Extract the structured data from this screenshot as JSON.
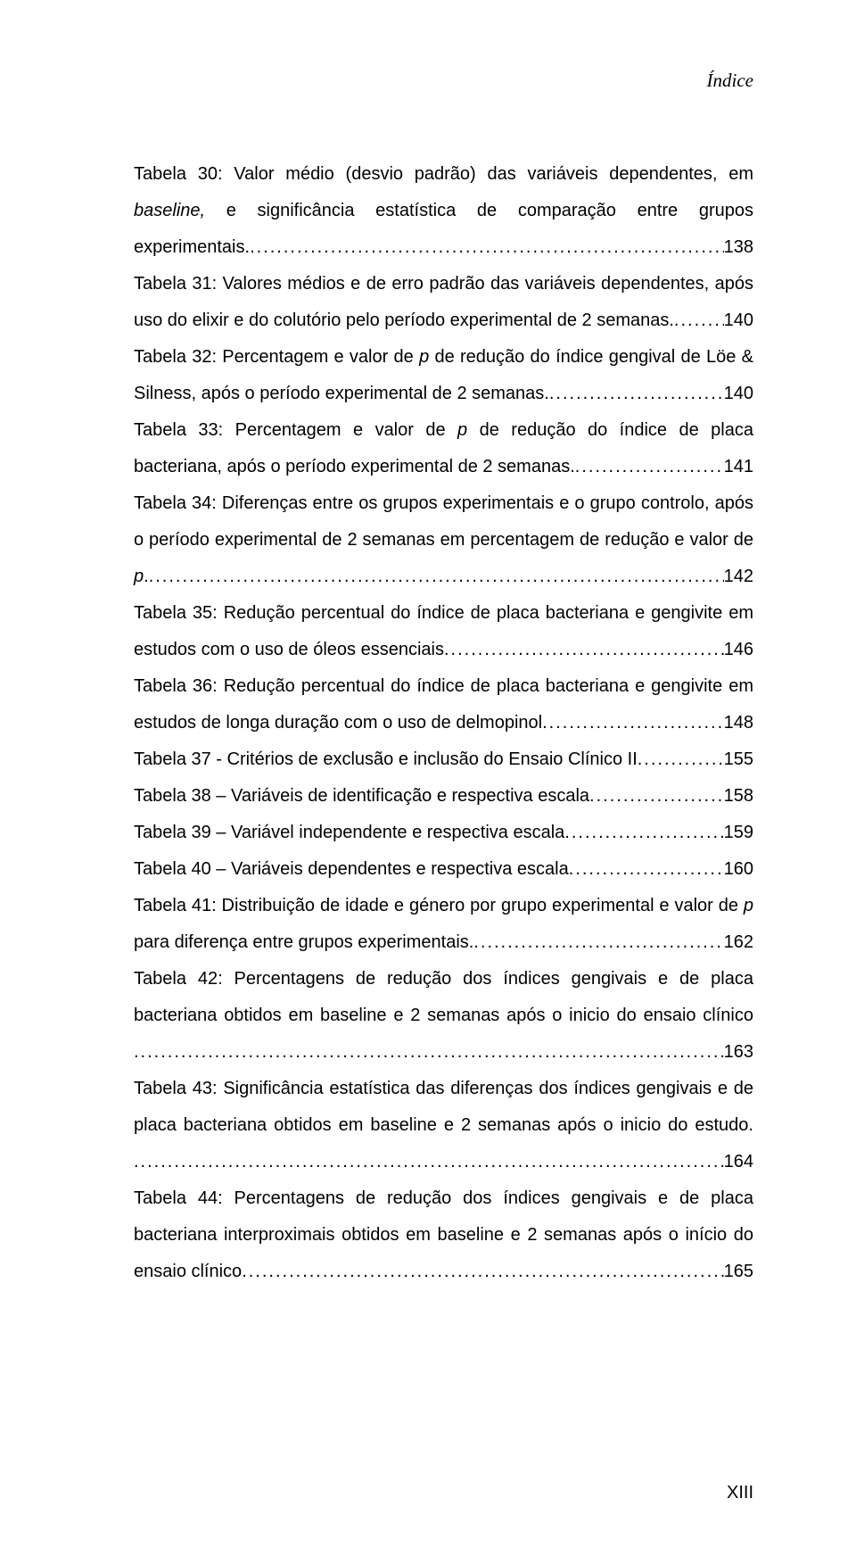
{
  "header_label": "Índice",
  "page_number": "XIII",
  "entries": [
    {
      "lines": [
        "Tabela 30: Valor médio (desvio padrão) das variáveis dependentes, em",
        "<span class=\"italic\">baseline,</span> e significância estatística de comparação entre grupos"
      ],
      "last": "experimentais.",
      "page": "138"
    },
    {
      "lines": [
        "Tabela 31: Valores médios e de erro padrão das variáveis dependentes, após"
      ],
      "last": "uso do elixir e do colutório pelo período experimental de 2 semanas.",
      "page": "140"
    },
    {
      "lines": [
        "Tabela 32: Percentagem e valor de <span class=\"italic\">p</span> de redução do índice gengival de Löe &"
      ],
      "last": "Silness, após o período experimental de 2 semanas. ",
      "page": "140"
    },
    {
      "lines": [
        "Tabela 33: Percentagem e valor de <span class=\"italic\">p</span> de redução do índice de placa"
      ],
      "last": "bacteriana, após o período experimental de 2 semanas. ",
      "page": "141"
    },
    {
      "lines": [
        "Tabela 34: Diferenças entre os grupos experimentais e o grupo controlo, após",
        "o período experimental de 2 semanas em percentagem de redução e valor de"
      ],
      "last": "<span class=\"italic\">p</span>.",
      "page": "142"
    },
    {
      "lines": [
        "Tabela 35: Redução percentual do índice de placa bacteriana e gengivite em"
      ],
      "last": "estudos com o uso de óleos essenciais",
      "page": "146"
    },
    {
      "lines": [
        "Tabela 36: Redução percentual do índice de placa bacteriana e gengivite em"
      ],
      "last": "estudos de longa duração com o uso de delmopinol",
      "page": "148"
    },
    {
      "lines": [],
      "last": "Tabela 37 - Critérios de exclusão e inclusão do Ensaio Clínico II",
      "page": "155"
    },
    {
      "lines": [],
      "last": "Tabela 38 – Variáveis de identificação e respectiva escala",
      "page": "158"
    },
    {
      "lines": [],
      "last": "Tabela 39 – Variável independente e respectiva escala",
      "page": "159"
    },
    {
      "lines": [],
      "last": "Tabela 40 – Variáveis dependentes e respectiva escala",
      "page": "160"
    },
    {
      "lines": [
        "Tabela 41: Distribuição de idade e género por grupo experimental e valor de <span class=\"italic\">p</span>"
      ],
      "last": "para diferença entre grupos experimentais.",
      "page": "162"
    },
    {
      "lines": [
        "Tabela 42: Percentagens de redução dos índices gengivais e de placa",
        "bacteriana obtidos em baseline e 2 semanas após o inicio do ensaio clínico"
      ],
      "last": "",
      "page": "163"
    },
    {
      "lines": [
        "Tabela 43: Significância estatística das diferenças dos índices gengivais e de",
        "placa bacteriana obtidos em baseline e 2 semanas após o inicio do estudo."
      ],
      "last": "",
      "page": "164"
    },
    {
      "lines": [
        "Tabela 44: Percentagens de redução dos índices gengivais e de placa",
        "bacteriana interproximais obtidos em baseline e 2 semanas após o início do"
      ],
      "last": "ensaio clínico",
      "page": "165"
    }
  ]
}
